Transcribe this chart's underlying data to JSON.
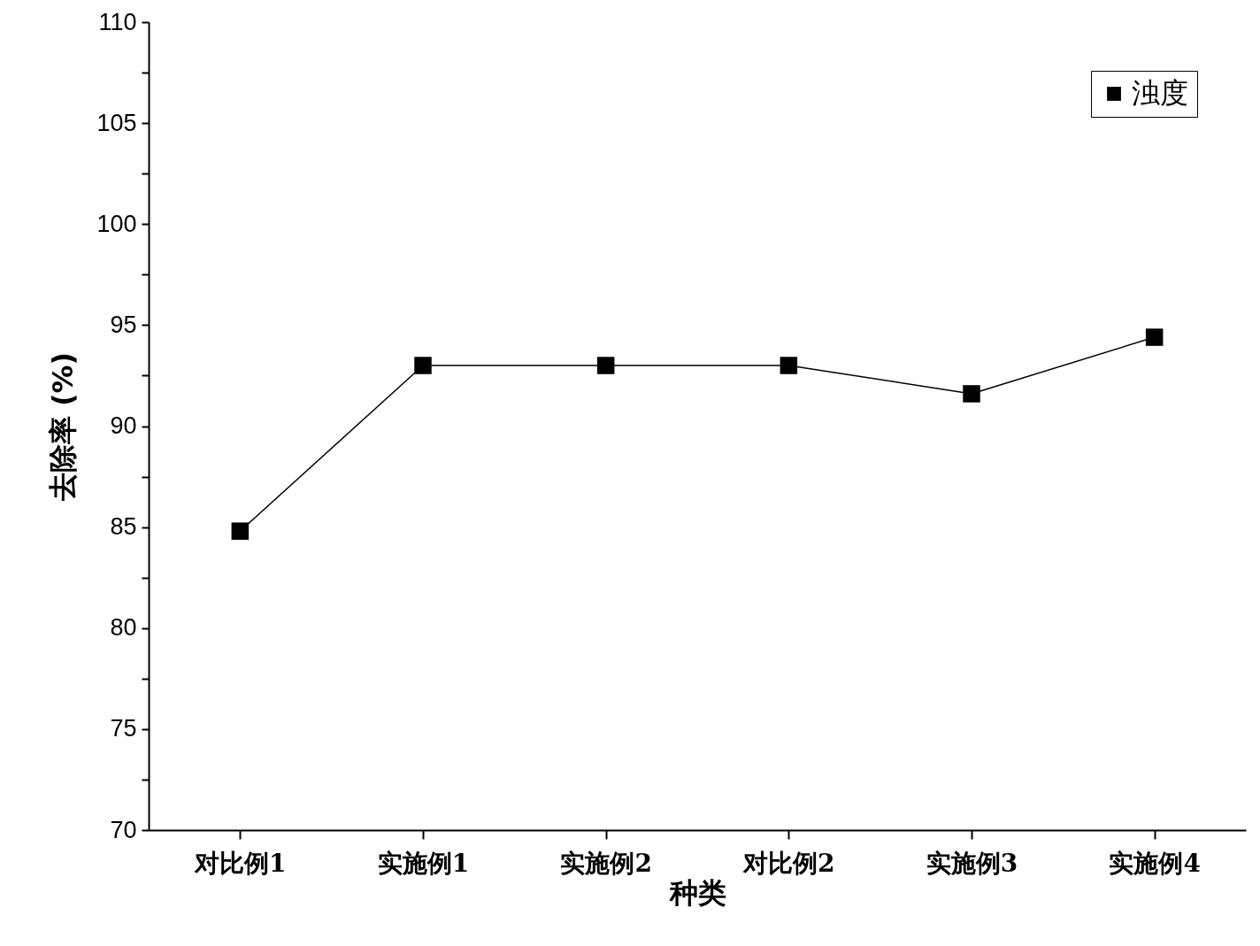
{
  "chart_data": {
    "type": "line",
    "xlabel": "种类",
    "ylabel": "去除率 (%)",
    "categories": [
      "对比例1",
      "实施例1",
      "实施例2",
      "对比例2",
      "实施例3",
      "实施例4"
    ],
    "series": [
      {
        "name": "浊度",
        "color": "#000000",
        "values": [
          84.8,
          93.0,
          93.0,
          93.0,
          91.6,
          94.4
        ]
      }
    ],
    "ylim": [
      70,
      110
    ],
    "yticks": [
      70,
      {
        "value": 72.5,
        "label": null
      },
      75,
      {
        "value": 77.5,
        "label": null
      },
      80,
      {
        "value": 82.5,
        "label": null
      },
      85,
      {
        "value": 87.5,
        "label": null
      },
      90,
      {
        "value": 92.5,
        "label": null
      },
      95,
      {
        "value": 97.5,
        "label": null
      },
      100,
      {
        "value": 102.5,
        "label": null
      },
      105,
      {
        "value": 107.5,
        "label": null
      },
      110
    ],
    "marker": "square",
    "line_style": "solid",
    "legend": "top right",
    "grid": false
  }
}
